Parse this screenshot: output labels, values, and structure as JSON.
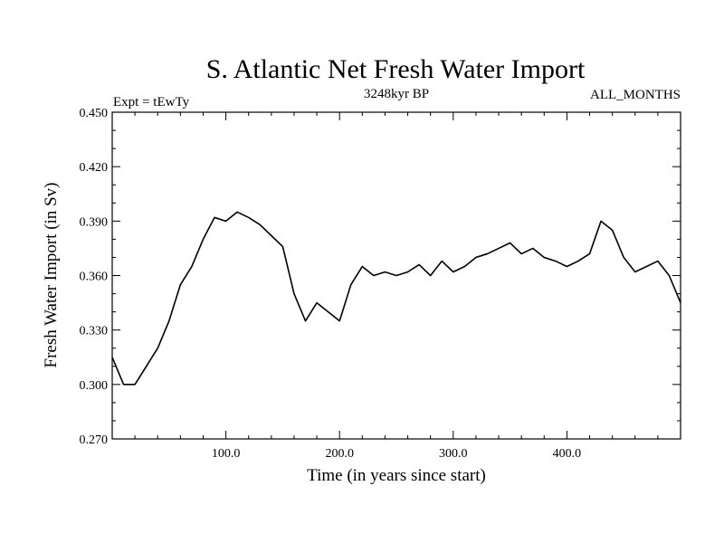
{
  "chart_data": {
    "type": "line",
    "title": "S. Atlantic Net Fresh Water Import",
    "subtitle_left": "Expt = tEwTy",
    "subtitle_center": "3248kyr BP",
    "subtitle_right": "ALL_MONTHS",
    "xlabel": "Time (in years since start)",
    "ylabel": "Fresh Water Import (in Sv)",
    "xlim": [
      0,
      500
    ],
    "ylim": [
      0.27,
      0.45
    ],
    "xticks": [
      100,
      200,
      300,
      400
    ],
    "xtick_labels": [
      "100.0",
      "200.0",
      "300.0",
      "400.0"
    ],
    "yticks": [
      0.27,
      0.3,
      0.33,
      0.36,
      0.39,
      0.42,
      0.45
    ],
    "ytick_labels": [
      "0.270",
      "0.300",
      "0.330",
      "0.360",
      "0.390",
      "0.420",
      "0.450"
    ],
    "grid": false,
    "series": [
      {
        "name": "Net fresh water import",
        "color": "#000000",
        "x": [
          0,
          10,
          20,
          30,
          40,
          50,
          60,
          70,
          80,
          90,
          100,
          110,
          120,
          130,
          140,
          150,
          160,
          170,
          180,
          190,
          200,
          210,
          220,
          230,
          240,
          250,
          260,
          270,
          280,
          290,
          300,
          310,
          320,
          330,
          340,
          350,
          360,
          370,
          380,
          390,
          400,
          410,
          420,
          430,
          440,
          450,
          460,
          470,
          480,
          490,
          500
        ],
        "values": [
          0.315,
          0.3,
          0.3,
          0.31,
          0.32,
          0.335,
          0.355,
          0.365,
          0.38,
          0.392,
          0.39,
          0.395,
          0.392,
          0.388,
          0.382,
          0.376,
          0.35,
          0.335,
          0.345,
          0.34,
          0.335,
          0.355,
          0.365,
          0.36,
          0.362,
          0.36,
          0.362,
          0.366,
          0.36,
          0.368,
          0.362,
          0.365,
          0.37,
          0.372,
          0.375,
          0.378,
          0.372,
          0.375,
          0.37,
          0.368,
          0.365,
          0.368,
          0.372,
          0.39,
          0.385,
          0.37,
          0.362,
          0.365,
          0.368,
          0.36,
          0.345
        ]
      }
    ]
  }
}
